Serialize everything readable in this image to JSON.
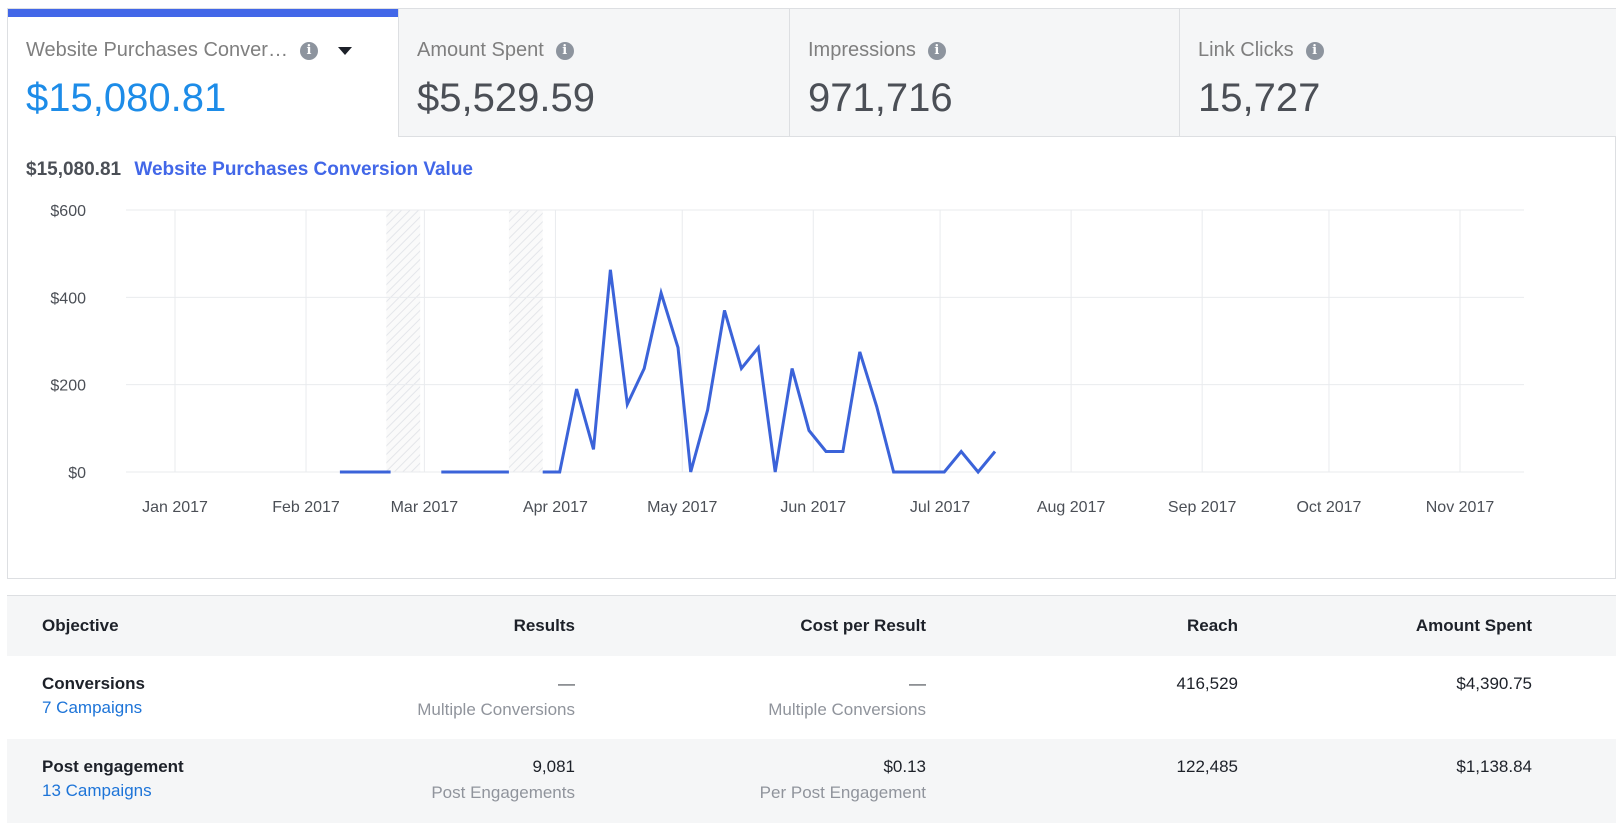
{
  "tabs": [
    {
      "label": "Website Purchases Conver…",
      "value": "$15,080.81",
      "active": true,
      "has_dropdown": true
    },
    {
      "label": "Amount Spent",
      "value": "$5,529.59"
    },
    {
      "label": "Impressions",
      "value": "971,716"
    },
    {
      "label": "Link Clicks",
      "value": "15,727"
    }
  ],
  "icons": {
    "info": "i",
    "dropdown": "caret-down-icon"
  },
  "colors": {
    "accent": "#4267e8",
    "active_value": "#1d8ce8",
    "line": "#3b63d9",
    "link": "#1d74d8"
  },
  "chart_data": {
    "type": "line",
    "total_label": "$15,080.81",
    "title": "Website Purchases Conversion Value",
    "y_ticks": [
      "$600",
      "$400",
      "$200",
      "$0"
    ],
    "y_tick_values": [
      600,
      400,
      200,
      0
    ],
    "ylim": [
      0,
      600
    ],
    "x_ticks": [
      "Jan 2017",
      "Feb 2017",
      "Mar 2017",
      "Apr 2017",
      "May 2017",
      "Jun 2017",
      "Jul 2017",
      "Aug 2017",
      "Sep 2017",
      "Oct 2017",
      "Nov 2017"
    ],
    "x_tick_dates": [
      "2017-01-01",
      "2017-02-01",
      "2017-03-01",
      "2017-04-01",
      "2017-05-01",
      "2017-06-01",
      "2017-07-01",
      "2017-08-01",
      "2017-09-01",
      "2017-10-01",
      "2017-11-01"
    ],
    "shaded_ranges": [
      [
        "2017-02-20",
        "2017-02-28"
      ],
      [
        "2017-03-21",
        "2017-03-29"
      ]
    ],
    "grid": true,
    "series": [
      {
        "segments": [
          [
            [
              "2017-02-09",
              0
            ],
            [
              "2017-02-21",
              0
            ]
          ],
          [
            [
              "2017-03-05",
              0
            ],
            [
              "2017-03-21",
              0
            ]
          ],
          [
            [
              "2017-03-29",
              0
            ],
            [
              "2017-04-02",
              0
            ],
            [
              "2017-04-06",
              190
            ],
            [
              "2017-04-10",
              52
            ],
            [
              "2017-04-14",
              463
            ],
            [
              "2017-04-18",
              155
            ],
            [
              "2017-04-22",
              237
            ],
            [
              "2017-04-26",
              410
            ],
            [
              "2017-04-30",
              285
            ],
            [
              "2017-05-03",
              0
            ],
            [
              "2017-05-07",
              142
            ],
            [
              "2017-05-11",
              370
            ],
            [
              "2017-05-15",
              237
            ],
            [
              "2017-05-19",
              285
            ],
            [
              "2017-05-23",
              0
            ],
            [
              "2017-05-27",
              237
            ],
            [
              "2017-05-31",
              95
            ],
            [
              "2017-06-04",
              47
            ],
            [
              "2017-06-08",
              47
            ],
            [
              "2017-06-12",
              275
            ],
            [
              "2017-06-16",
              150
            ],
            [
              "2017-06-20",
              0
            ],
            [
              "2017-06-24",
              0
            ],
            [
              "2017-06-28",
              0
            ],
            [
              "2017-07-02",
              0
            ],
            [
              "2017-07-06",
              47
            ],
            [
              "2017-07-10",
              0
            ],
            [
              "2017-07-14",
              47
            ]
          ]
        ]
      }
    ]
  },
  "table": {
    "headers": [
      "Objective",
      "Results",
      "Cost per Result",
      "Reach",
      "Amount Spent"
    ],
    "rows": [
      {
        "objective": "Conversions",
        "campaigns": "7 Campaigns",
        "results": "—",
        "results_sub": "Multiple Conversions",
        "cost": "—",
        "cost_sub": "Multiple Conversions",
        "reach": "416,529",
        "spent": "$4,390.75"
      },
      {
        "objective": "Post engagement",
        "campaigns": "13 Campaigns",
        "results": "9,081",
        "results_sub": "Post Engagements",
        "cost": "$0.13",
        "cost_sub": "Per Post Engagement",
        "reach": "122,485",
        "spent": "$1,138.84"
      }
    ]
  }
}
